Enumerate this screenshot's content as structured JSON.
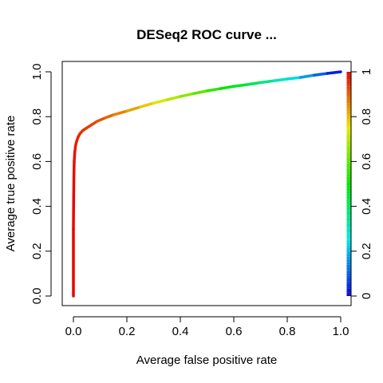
{
  "chart_data": {
    "type": "line",
    "title": "DESeq2 ROC curve ...",
    "xlabel": "Average false positive rate",
    "ylabel": "Average true positive rate",
    "xlim": [
      0,
      1
    ],
    "ylim": [
      0,
      1
    ],
    "x_ticks": [
      "0.0",
      "0.2",
      "0.4",
      "0.6",
      "0.8",
      "1.0"
    ],
    "y_ticks": [
      "0.0",
      "0.2",
      "0.4",
      "0.6",
      "0.8",
      "1.0"
    ],
    "colorbar": {
      "label_position": "right",
      "ticks": [
        "0",
        "0.2",
        "0.4",
        "0.6",
        "0.8",
        "1"
      ],
      "colormap": "rainbow",
      "range": [
        0,
        1
      ]
    },
    "grid": false,
    "series": [
      {
        "colored_by": "cutoff",
        "x": [
          0.0,
          0.0,
          0.001,
          0.002,
          0.003,
          0.005,
          0.008,
          0.012,
          0.018,
          0.025,
          0.035,
          0.05,
          0.07,
          0.09,
          0.12,
          0.15,
          0.2,
          0.25,
          0.3,
          0.35,
          0.4,
          0.45,
          0.5,
          0.55,
          0.6,
          0.65,
          0.7,
          0.75,
          0.8,
          0.85,
          0.9,
          0.95,
          1.0
        ],
        "y": [
          0.0,
          0.3,
          0.45,
          0.55,
          0.6,
          0.64,
          0.67,
          0.69,
          0.71,
          0.725,
          0.738,
          0.75,
          0.765,
          0.78,
          0.795,
          0.808,
          0.825,
          0.843,
          0.86,
          0.875,
          0.89,
          0.903,
          0.915,
          0.925,
          0.935,
          0.943,
          0.952,
          0.96,
          0.968,
          0.975,
          0.985,
          0.993,
          1.0
        ],
        "color_values": [
          1.0,
          0.995,
          0.99,
          0.985,
          0.98,
          0.975,
          0.97,
          0.965,
          0.96,
          0.955,
          0.95,
          0.94,
          0.93,
          0.92,
          0.9,
          0.88,
          0.84,
          0.8,
          0.76,
          0.72,
          0.68,
          0.63,
          0.58,
          0.53,
          0.48,
          0.43,
          0.38,
          0.33,
          0.27,
          0.2,
          0.14,
          0.07,
          0.0
        ]
      }
    ]
  }
}
